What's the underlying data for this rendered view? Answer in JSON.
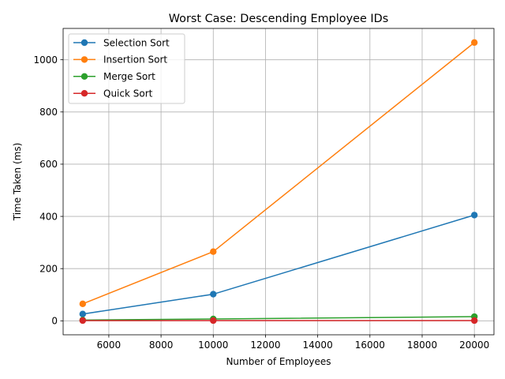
{
  "chart_data": {
    "type": "line",
    "title": "Worst Case: Descending Employee IDs",
    "xlabel": "Number of Employees",
    "ylabel": "Time Taken (ms)",
    "x": [
      5000,
      10000,
      20000
    ],
    "xlim": [
      4250,
      20750
    ],
    "ylim": [
      -53.5,
      1120
    ],
    "xticks": [
      6000,
      8000,
      10000,
      12000,
      14000,
      16000,
      18000,
      20000
    ],
    "yticks": [
      0,
      200,
      400,
      600,
      800,
      1000
    ],
    "grid": true,
    "legend": "upper-left",
    "series": [
      {
        "name": "Selection Sort",
        "color": "#1f77b4",
        "values": [
          26,
          102,
          405
        ]
      },
      {
        "name": "Insertion Sort",
        "color": "#ff7f0e",
        "values": [
          65,
          265,
          1066
        ]
      },
      {
        "name": "Merge Sort",
        "color": "#2ca02c",
        "values": [
          3,
          7,
          16
        ]
      },
      {
        "name": "Quick Sort",
        "color": "#d62728",
        "values": [
          1,
          1,
          1
        ]
      }
    ]
  }
}
